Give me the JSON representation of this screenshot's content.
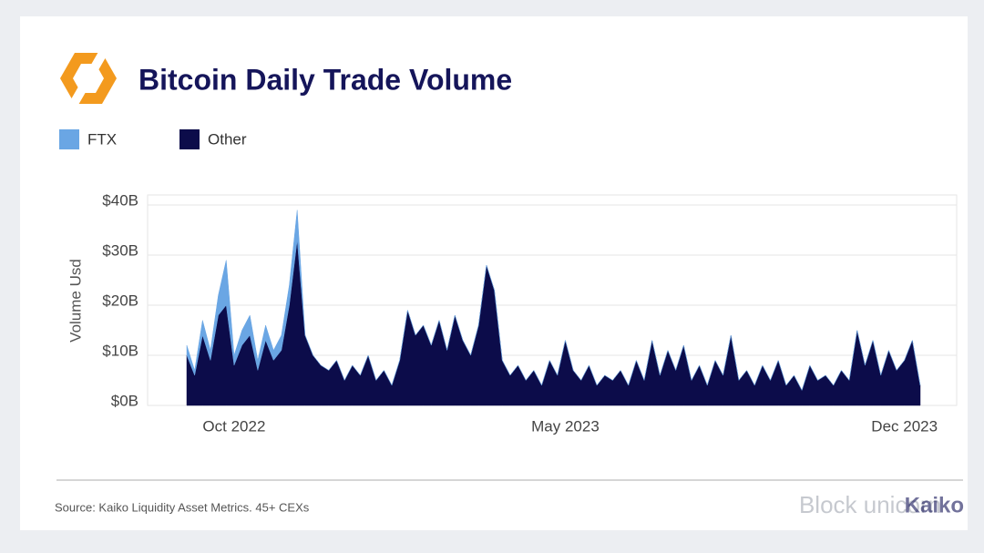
{
  "chart_data": {
    "type": "area",
    "stacked": true,
    "title": "Bitcoin Daily Trade Volume",
    "y_label": "Volume Usd",
    "source": "Source: Kaiko Liquidity Asset Metrics. 45+ CEXs",
    "brand": "Kaiko",
    "watermark": "Block unicorn",
    "categories": [
      null,
      null,
      null,
      null,
      null,
      null,
      "Oct 2022",
      null,
      null,
      null,
      null,
      null,
      null,
      null,
      null,
      null,
      null,
      null,
      null,
      null,
      null,
      null,
      null,
      null,
      null,
      null,
      null,
      null,
      null,
      null,
      null,
      null,
      null,
      null,
      null,
      null,
      null,
      null,
      null,
      null,
      null,
      null,
      null,
      null,
      null,
      null,
      null,
      null,
      "May 2023",
      null,
      null,
      null,
      null,
      null,
      null,
      null,
      null,
      null,
      null,
      null,
      null,
      null,
      null,
      null,
      null,
      null,
      null,
      null,
      null,
      null,
      null,
      null,
      null,
      null,
      null,
      null,
      null,
      null,
      null,
      null,
      null,
      null,
      null,
      null,
      null,
      null,
      null,
      null,
      null,
      null,
      null,
      "Dec 2023",
      null,
      null
    ],
    "series": [
      {
        "name": "FTX",
        "color": "#6aa6e4",
        "values": [
          2,
          1,
          3,
          2,
          4,
          9,
          2,
          3,
          4,
          2,
          3,
          2,
          3,
          4,
          6,
          0,
          0,
          0,
          0,
          0,
          0,
          0,
          0,
          0,
          0,
          0,
          0,
          0,
          0,
          0,
          0,
          0,
          0,
          0,
          0,
          0,
          0,
          0,
          0,
          0,
          0,
          0,
          0,
          0,
          0,
          0,
          0,
          0,
          0,
          0,
          0,
          0,
          0,
          0,
          0,
          0,
          0,
          0,
          0,
          0,
          0,
          0,
          0,
          0,
          0,
          0,
          0,
          0,
          0,
          0,
          0,
          0,
          0,
          0,
          0,
          0,
          0,
          0,
          0,
          0,
          0,
          0,
          0,
          0,
          0,
          0,
          0,
          0,
          0,
          0,
          0,
          0,
          0,
          0
        ]
      },
      {
        "name": "Other",
        "color": "#0c0c4a",
        "values": [
          10,
          6,
          14,
          9,
          18,
          20,
          8,
          12,
          14,
          7,
          13,
          9,
          11,
          20,
          33,
          14,
          10,
          8,
          7,
          9,
          5,
          8,
          6,
          10,
          5,
          7,
          4,
          9,
          19,
          14,
          16,
          12,
          17,
          11,
          18,
          13,
          10,
          16,
          28,
          23,
          9,
          6,
          8,
          5,
          7,
          4,
          9,
          6,
          13,
          7,
          5,
          8,
          4,
          6,
          5,
          7,
          4,
          9,
          5,
          13,
          6,
          11,
          7,
          12,
          5,
          8,
          4,
          9,
          6,
          14,
          5,
          7,
          4,
          8,
          5,
          9,
          4,
          6,
          3,
          8,
          5,
          6,
          4,
          7,
          5,
          15,
          8,
          13,
          6,
          11,
          7,
          9,
          13,
          4
        ]
      }
    ],
    "ylim": [
      0,
      42
    ],
    "yticks": [
      {
        "value": 0,
        "label": "$0B"
      },
      {
        "value": 10,
        "label": "$10B"
      },
      {
        "value": 20,
        "label": "$20B"
      },
      {
        "value": 30,
        "label": "$30B"
      },
      {
        "value": 40,
        "label": "$40B"
      }
    ],
    "grid": true
  }
}
